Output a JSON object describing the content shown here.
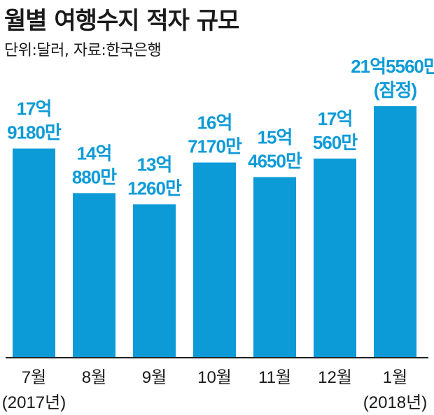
{
  "header": {
    "title": "월별 여행수지 적자 규모",
    "subtitle": "단위:달러, 자료:한국은행"
  },
  "chart_data": {
    "type": "bar",
    "title": "월별 여행수지 적자 규모",
    "subtitle": "단위:달러, 자료:한국은행",
    "categories": [
      "7월",
      "8월",
      "9월",
      "10월",
      "11월",
      "12월",
      "1월"
    ],
    "category_years": [
      "(2017년)",
      "",
      "",
      "",
      "",
      "",
      "(2018년)"
    ],
    "values": [
      1791800000,
      1408800000,
      1312600000,
      1671700000,
      1546500000,
      1705600000,
      2155600000
    ],
    "data_labels": [
      [
        "17억",
        "9180만"
      ],
      [
        "14억",
        "880만"
      ],
      [
        "13억",
        "1260만"
      ],
      [
        "16억",
        "7170만"
      ],
      [
        "15억",
        "4650만"
      ],
      [
        "17억",
        "560만"
      ],
      [
        "21억5560만",
        "(잠정)"
      ]
    ],
    "ylim": [
      0,
      2300000000
    ],
    "colors": {
      "bar": "#0d9bd8",
      "label": "#0d9bd8",
      "axis": "#222222",
      "tick_text": "#1a1a1a"
    },
    "grid": false,
    "legend": "none"
  }
}
